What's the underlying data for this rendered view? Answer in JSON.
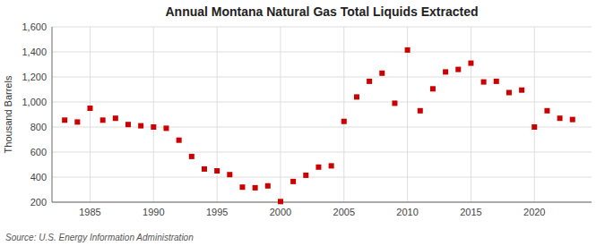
{
  "chart_data": {
    "type": "scatter",
    "title": "Annual Montana Natural Gas Total Liquids Extracted",
    "ylabel": "Thousand Barrels",
    "source": "Source: U.S. Energy Information Administration",
    "color": "#cc0000",
    "marker": "square",
    "grid": true,
    "xlim": [
      1982,
      2024.5
    ],
    "ylim": [
      200,
      1600
    ],
    "xticks": [
      1985,
      1990,
      1995,
      2000,
      2005,
      2010,
      2015,
      2020
    ],
    "yticks": [
      200,
      400,
      600,
      800,
      {
        "value": 1000,
        "label": "1,000"
      },
      {
        "value": 1200,
        "label": "1,200"
      },
      {
        "value": 1400,
        "label": "1,400"
      },
      {
        "value": 1600,
        "label": "1,600"
      }
    ],
    "x": [
      1983,
      1984,
      1985,
      1986,
      1987,
      1988,
      1989,
      1990,
      1991,
      1992,
      1993,
      1994,
      1995,
      1996,
      1997,
      1998,
      1999,
      2000,
      2001,
      2002,
      2003,
      2004,
      2005,
      2006,
      2007,
      2008,
      2009,
      2010,
      2011,
      2012,
      2013,
      2014,
      2015,
      2016,
      2017,
      2018,
      2019,
      2020,
      2021,
      2022,
      2023
    ],
    "values": [
      855,
      840,
      950,
      855,
      870,
      820,
      810,
      800,
      790,
      695,
      565,
      465,
      450,
      420,
      320,
      315,
      330,
      205,
      365,
      415,
      480,
      490,
      845,
      1040,
      1165,
      1230,
      990,
      1415,
      930,
      1105,
      1240,
      1260,
      1310,
      1160,
      1165,
      1075,
      1095,
      800,
      930,
      870,
      860
    ]
  }
}
